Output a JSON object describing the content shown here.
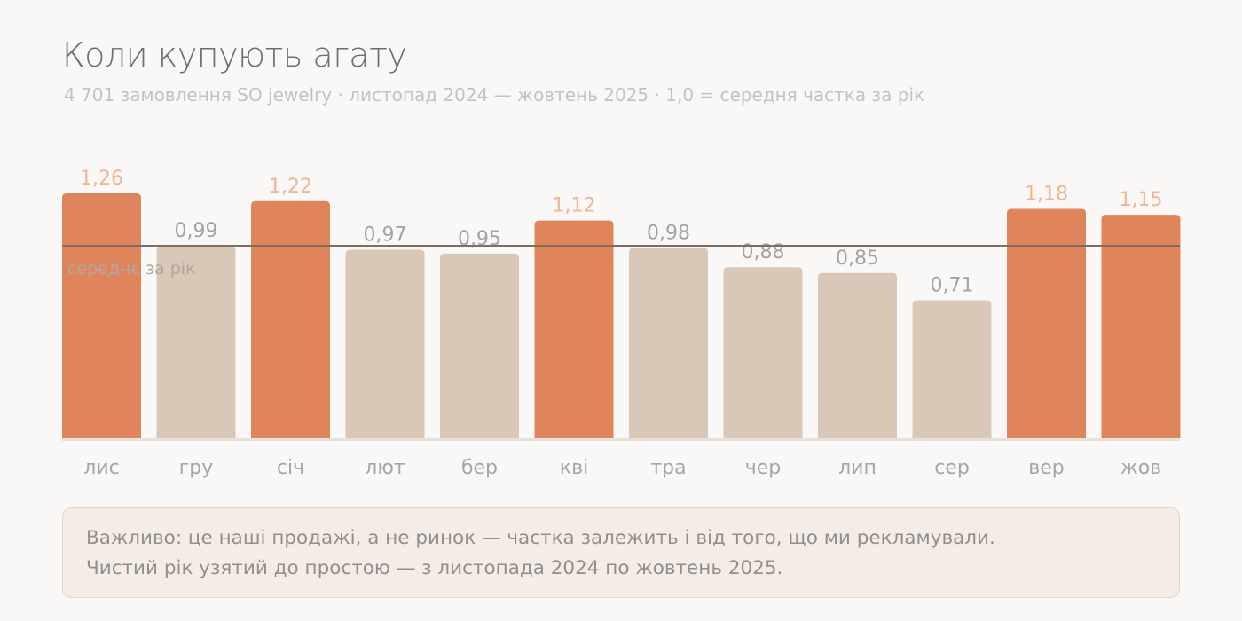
{
  "title": "Коли купують агату",
  "subtitle": "4 701 замовлення SO jewelry · листопад 2024 — жовтень 2025 · 1,0 = середня частка за рік",
  "note": {
    "line1": "Важливо: це наші продажі, а не ринок — частка залежить і від того, що ми рекламували.",
    "line2": "Чистий рік узятий до простою — з листопада 2024 по жовтень 2025."
  },
  "colors": {
    "highlight": "#e0855b",
    "normal": "#d9c7b8",
    "highlight_label": "#efb597",
    "normal_label": "#a3a3a3",
    "reference_line": "#7f6d62",
    "baseline": "#e7e1dc"
  },
  "chart_data": {
    "type": "bar",
    "categories": [
      "лис",
      "гру",
      "січ",
      "лют",
      "бер",
      "кві",
      "тра",
      "чер",
      "лип",
      "сер",
      "вер",
      "жов"
    ],
    "values": [
      1.26,
      0.99,
      1.22,
      0.97,
      0.95,
      1.12,
      0.98,
      0.88,
      0.85,
      0.71,
      1.18,
      1.15
    ],
    "value_labels": [
      "1,26",
      "0,99",
      "1,22",
      "0,97",
      "0,95",
      "1,12",
      "0,98",
      "0,88",
      "0,85",
      "0,71",
      "1,18",
      "1,15"
    ],
    "highlighted": [
      true,
      false,
      true,
      false,
      false,
      true,
      false,
      false,
      false,
      false,
      true,
      true
    ],
    "reference": {
      "value": 1.0,
      "label": "середнє за рік"
    },
    "ylim": [
      0,
      1.26
    ],
    "grid": false,
    "legend": "none"
  }
}
